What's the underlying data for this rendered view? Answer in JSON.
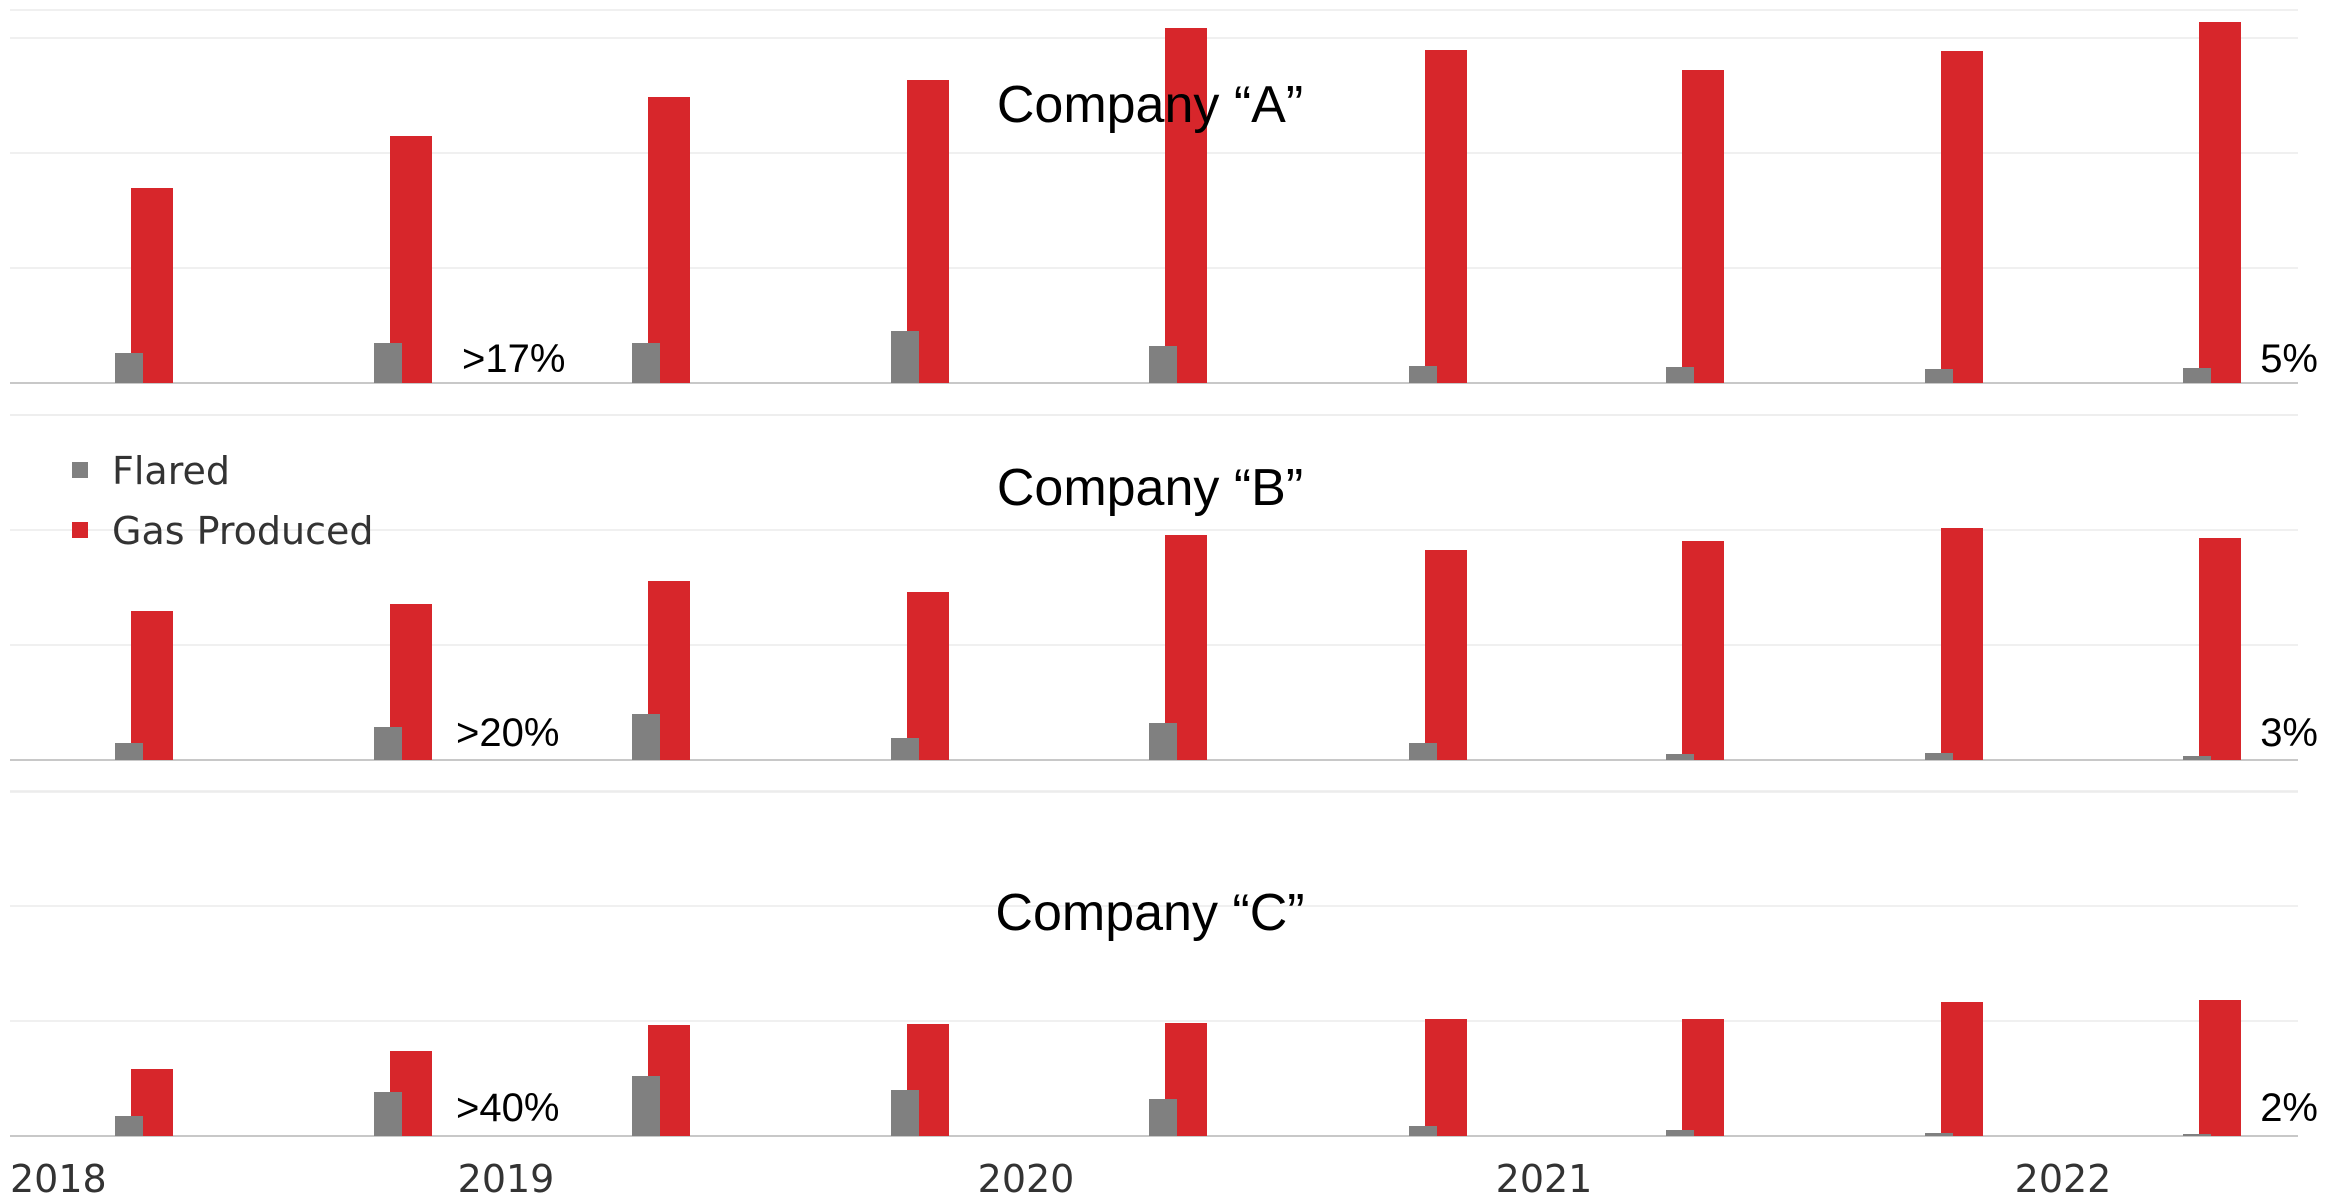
{
  "chart_data": {
    "type": "bar",
    "x_ticks": [
      "2018",
      "2019",
      "2020",
      "2021",
      "2022"
    ],
    "legend": {
      "position": "left",
      "items": [
        {
          "name": "Flared",
          "color": "#808080"
        },
        {
          "name": "Gas Produced",
          "color": "#d7262b"
        }
      ]
    },
    "colors": {
      "flared": "#808080",
      "gas_produced": "#d7262b"
    },
    "panels": [
      {
        "title": "Company “A”",
        "series": [
          {
            "name": "Flared",
            "values": [
              30,
              40,
              40,
              52,
              37,
              17,
              16,
              14,
              15
            ]
          },
          {
            "name": "Gas Produced",
            "values": [
              195,
              247,
              286,
              303,
              355,
              333,
              313,
              332,
              361
            ]
          }
        ],
        "annotations": [
          ">17%",
          "5%"
        ]
      },
      {
        "title": "Company “B”",
        "series": [
          {
            "name": "Flared",
            "values": [
              17,
              33,
              46,
              22,
              37,
              17,
              6,
              7,
              4
            ]
          },
          {
            "name": "Gas Produced",
            "values": [
              149,
              156,
              179,
              168,
              225,
              210,
              219,
              232,
              222
            ]
          }
        ],
        "annotations": [
          ">20%",
          "3%"
        ]
      },
      {
        "title": "Company “C”",
        "series": [
          {
            "name": "Flared",
            "values": [
              20,
              44,
              60,
              46,
              37,
              10,
              6,
              3,
              2
            ]
          },
          {
            "name": "Gas Produced",
            "values": [
              67,
              85,
              111,
              112,
              113,
              117,
              117,
              134,
              136
            ]
          }
        ],
        "annotations": [
          ">40%",
          "2%"
        ]
      }
    ]
  }
}
